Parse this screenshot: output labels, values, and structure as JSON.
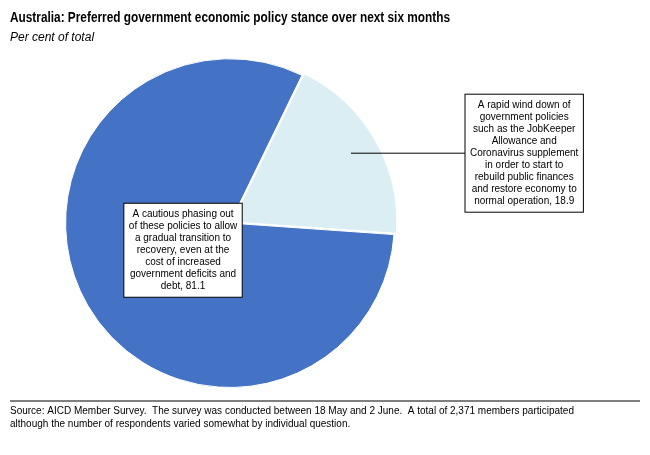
{
  "chart_data": {
    "type": "pie",
    "title": "Australia: Preferred government economic policy stance over next six months",
    "subtitle": "Per cent of total",
    "values": [
      81.1,
      18.9
    ],
    "colors": [
      "#4472C4",
      "#DAEEF3"
    ],
    "annotations": [
      "A cautious phasing out\nof these policies to allow\na gradual transition to\nrecovery, even at the\ncost of increased\ngovernment deficits and\ndebt, 81.1",
      "A rapid wind down of\ngovernment policies\nsuch as the JobKeeper\nAllowance and\nCoronavirus supplement\nin order to start to\nrebuild public finances\nand restore economy to\nnormal operation, 18.9"
    ],
    "source": "Source: AICD Member Survey.  The survey was conducted between 18 May and 2 June.  A total of 2,371 members participated\nalthough the number of respondents varied somewhat by individual question."
  }
}
